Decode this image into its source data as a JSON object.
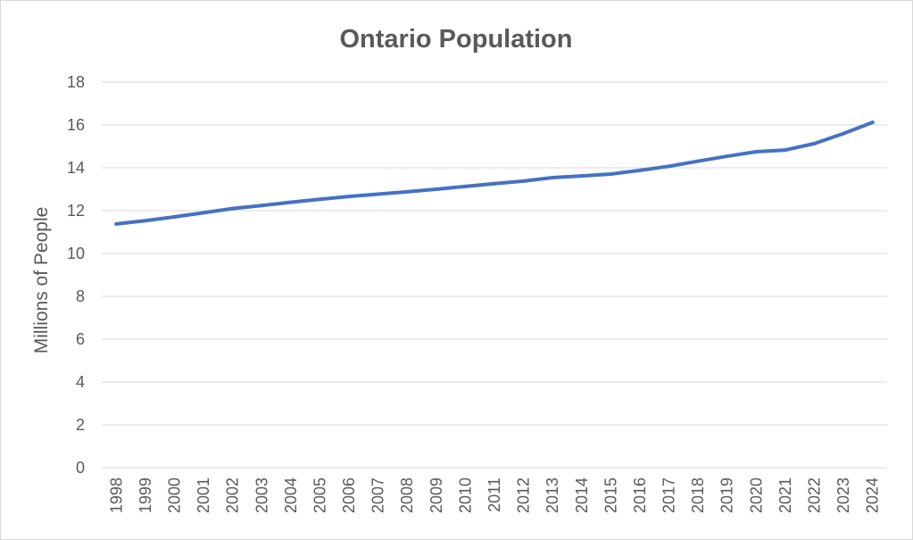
{
  "chart_data": {
    "type": "line",
    "title": "Ontario Population",
    "xlabel": "",
    "ylabel": "Millions of People",
    "categories": [
      "1998",
      "1999",
      "2000",
      "2001",
      "2002",
      "2003",
      "2004",
      "2005",
      "2006",
      "2007",
      "2008",
      "2009",
      "2010",
      "2011",
      "2012",
      "2013",
      "2014",
      "2015",
      "2016",
      "2017",
      "2018",
      "2019",
      "2020",
      "2021",
      "2022",
      "2023",
      "2024"
    ],
    "series": [
      {
        "values": [
          11.38,
          11.53,
          11.71,
          11.9,
          12.1,
          12.24,
          12.39,
          12.53,
          12.66,
          12.77,
          12.88,
          13.0,
          13.13,
          13.26,
          13.38,
          13.54,
          13.62,
          13.71,
          13.88,
          14.07,
          14.31,
          14.54,
          14.75,
          14.83,
          15.13,
          15.6,
          16.12
        ],
        "color": "#4472c4"
      }
    ],
    "ylim": [
      0,
      18
    ],
    "yticks": [
      0,
      2,
      4,
      6,
      8,
      10,
      12,
      14,
      16,
      18
    ],
    "grid": true,
    "legend": "none"
  }
}
